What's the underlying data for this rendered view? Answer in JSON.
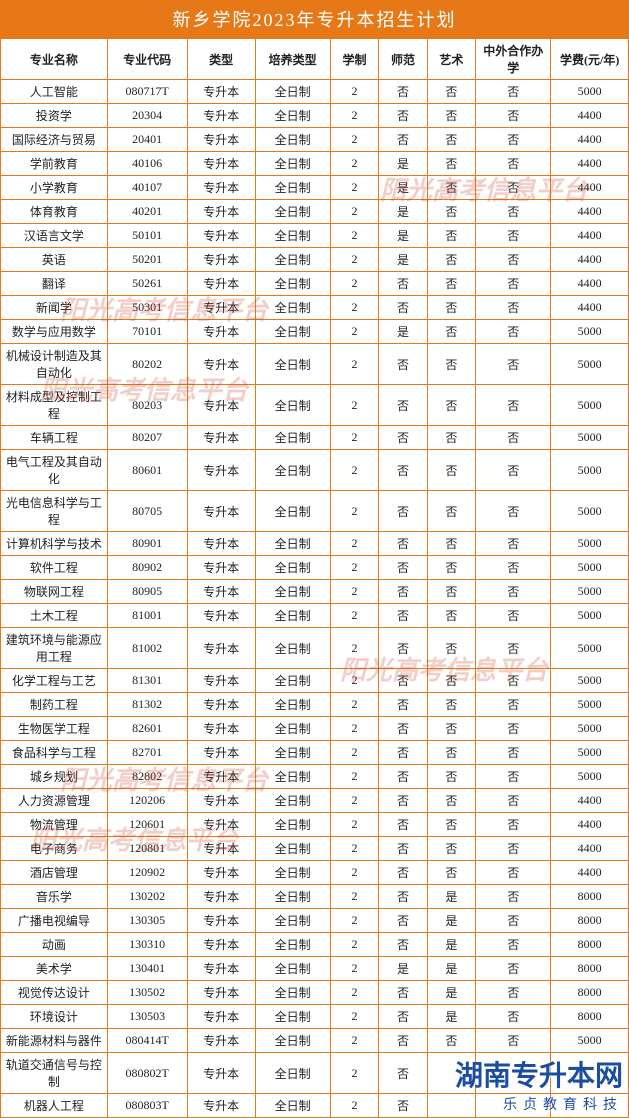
{
  "title": "新乡学院2023年专升本招生计划",
  "colors": {
    "header_bg": "#e67817",
    "header_text": "#ffffff",
    "border": "#e67817",
    "text": "#222222",
    "watermark": "rgba(200,60,30,0.25)",
    "brand": "#1b4ea0"
  },
  "columns": [
    "专业名称",
    "专业代码",
    "类型",
    "培养类型",
    "学制",
    "师范",
    "艺术",
    "中外合作办学",
    "学费(元/年)"
  ],
  "rows": [
    [
      "人工智能",
      "080717T",
      "专升本",
      "全日制",
      "2",
      "否",
      "否",
      "否",
      "5000"
    ],
    [
      "投资学",
      "20304",
      "专升本",
      "全日制",
      "2",
      "否",
      "否",
      "否",
      "4400"
    ],
    [
      "国际经济与贸易",
      "20401",
      "专升本",
      "全日制",
      "2",
      "否",
      "否",
      "否",
      "4400"
    ],
    [
      "学前教育",
      "40106",
      "专升本",
      "全日制",
      "2",
      "是",
      "否",
      "否",
      "4400"
    ],
    [
      "小学教育",
      "40107",
      "专升本",
      "全日制",
      "2",
      "是",
      "否",
      "否",
      "4400"
    ],
    [
      "体育教育",
      "40201",
      "专升本",
      "全日制",
      "2",
      "是",
      "否",
      "否",
      "4400"
    ],
    [
      "汉语言文学",
      "50101",
      "专升本",
      "全日制",
      "2",
      "是",
      "否",
      "否",
      "4400"
    ],
    [
      "英语",
      "50201",
      "专升本",
      "全日制",
      "2",
      "是",
      "否",
      "否",
      "4400"
    ],
    [
      "翻译",
      "50261",
      "专升本",
      "全日制",
      "2",
      "否",
      "否",
      "否",
      "4400"
    ],
    [
      "新闻学",
      "50301",
      "专升本",
      "全日制",
      "2",
      "否",
      "否",
      "否",
      "4400"
    ],
    [
      "数学与应用数学",
      "70101",
      "专升本",
      "全日制",
      "2",
      "是",
      "否",
      "否",
      "5000"
    ],
    [
      "机械设计制造及其自动化",
      "80202",
      "专升本",
      "全日制",
      "2",
      "否",
      "否",
      "否",
      "5000"
    ],
    [
      "材料成型及控制工程",
      "80203",
      "专升本",
      "全日制",
      "2",
      "否",
      "否",
      "否",
      "5000"
    ],
    [
      "车辆工程",
      "80207",
      "专升本",
      "全日制",
      "2",
      "否",
      "否",
      "否",
      "5000"
    ],
    [
      "电气工程及其自动化",
      "80601",
      "专升本",
      "全日制",
      "2",
      "否",
      "否",
      "否",
      "5000"
    ],
    [
      "光电信息科学与工程",
      "80705",
      "专升本",
      "全日制",
      "2",
      "否",
      "否",
      "否",
      "5000"
    ],
    [
      "计算机科学与技术",
      "80901",
      "专升本",
      "全日制",
      "2",
      "否",
      "否",
      "否",
      "5000"
    ],
    [
      "软件工程",
      "80902",
      "专升本",
      "全日制",
      "2",
      "否",
      "否",
      "否",
      "5000"
    ],
    [
      "物联网工程",
      "80905",
      "专升本",
      "全日制",
      "2",
      "否",
      "否",
      "否",
      "5000"
    ],
    [
      "土木工程",
      "81001",
      "专升本",
      "全日制",
      "2",
      "否",
      "否",
      "否",
      "5000"
    ],
    [
      "建筑环境与能源应用工程",
      "81002",
      "专升本",
      "全日制",
      "2",
      "否",
      "否",
      "否",
      "5000"
    ],
    [
      "化学工程与工艺",
      "81301",
      "专升本",
      "全日制",
      "2",
      "否",
      "否",
      "否",
      "5000"
    ],
    [
      "制药工程",
      "81302",
      "专升本",
      "全日制",
      "2",
      "否",
      "否",
      "否",
      "5000"
    ],
    [
      "生物医学工程",
      "82601",
      "专升本",
      "全日制",
      "2",
      "否",
      "否",
      "否",
      "5000"
    ],
    [
      "食品科学与工程",
      "82701",
      "专升本",
      "全日制",
      "2",
      "否",
      "否",
      "否",
      "5000"
    ],
    [
      "城乡规划",
      "82802",
      "专升本",
      "全日制",
      "2",
      "否",
      "否",
      "否",
      "5000"
    ],
    [
      "人力资源管理",
      "120206",
      "专升本",
      "全日制",
      "2",
      "否",
      "否",
      "否",
      "4400"
    ],
    [
      "物流管理",
      "120601",
      "专升本",
      "全日制",
      "2",
      "否",
      "否",
      "否",
      "4400"
    ],
    [
      "电子商务",
      "120801",
      "专升本",
      "全日制",
      "2",
      "否",
      "否",
      "否",
      "4400"
    ],
    [
      "酒店管理",
      "120902",
      "专升本",
      "全日制",
      "2",
      "否",
      "否",
      "否",
      "4400"
    ],
    [
      "音乐学",
      "130202",
      "专升本",
      "全日制",
      "2",
      "否",
      "是",
      "否",
      "8000"
    ],
    [
      "广播电视编导",
      "130305",
      "专升本",
      "全日制",
      "2",
      "否",
      "是",
      "否",
      "8000"
    ],
    [
      "动画",
      "130310",
      "专升本",
      "全日制",
      "2",
      "否",
      "是",
      "否",
      "8000"
    ],
    [
      "美术学",
      "130401",
      "专升本",
      "全日制",
      "2",
      "是",
      "是",
      "否",
      "8000"
    ],
    [
      "视觉传达设计",
      "130502",
      "专升本",
      "全日制",
      "2",
      "否",
      "是",
      "否",
      "8000"
    ],
    [
      "环境设计",
      "130503",
      "专升本",
      "全日制",
      "2",
      "否",
      "是",
      "否",
      "8000"
    ],
    [
      "新能源材料与器件",
      "080414T",
      "专升本",
      "全日制",
      "2",
      "否",
      "否",
      "否",
      "5000"
    ],
    [
      "轨道交通信号与控制",
      "080802T",
      "专升本",
      "全日制",
      "2",
      "否",
      "",
      "",
      ""
    ],
    [
      "机器人工程",
      "080803T",
      "专升本",
      "全日制",
      "2",
      "否",
      "",
      "",
      ""
    ]
  ],
  "watermark_text": "阳光高考信息平台",
  "footer": {
    "main": "湖南专升本网",
    "sub": "乐贞教育科技"
  }
}
